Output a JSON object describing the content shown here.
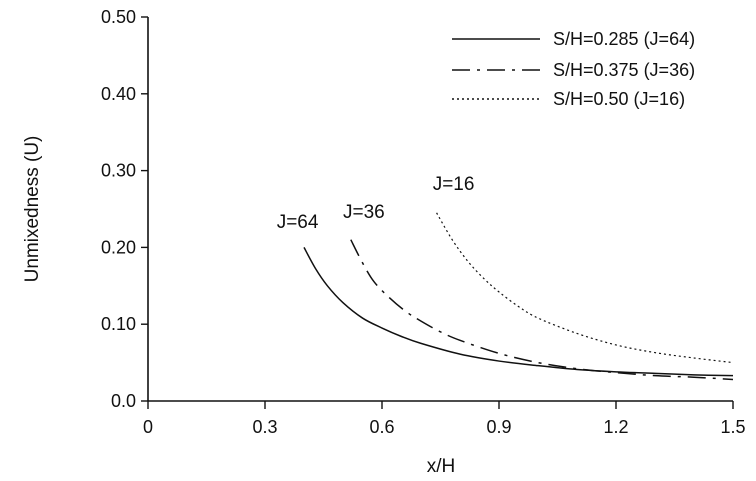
{
  "chart_data": {
    "type": "line",
    "title": "",
    "xlabel": "x/H",
    "ylabel": "Unmixedness (U)",
    "xlim": [
      0,
      1.5
    ],
    "ylim": [
      0,
      0.5
    ],
    "x_ticks": [
      0,
      0.3,
      0.6,
      0.9,
      1.2,
      1.5
    ],
    "x_tick_labels": [
      "0",
      "0.3",
      "0.6",
      "0.9",
      "1.2",
      "1.5"
    ],
    "y_ticks": [
      0,
      0.1,
      0.2,
      0.3,
      0.4,
      0.5
    ],
    "y_tick_labels": [
      "0.0",
      "0.10",
      "0.20",
      "0.30",
      "0.40",
      "0.50"
    ],
    "grid": false,
    "legend_position": "top-right",
    "series": [
      {
        "name": "S/H=0.285 (J=64)",
        "line_style": "solid",
        "x": [
          0.4,
          0.43,
          0.46,
          0.5,
          0.55,
          0.6,
          0.65,
          0.7,
          0.8,
          0.9,
          1.0,
          1.1,
          1.2,
          1.3,
          1.4,
          1.5
        ],
        "y": [
          0.2,
          0.172,
          0.15,
          0.128,
          0.108,
          0.095,
          0.084,
          0.075,
          0.061,
          0.052,
          0.046,
          0.041,
          0.038,
          0.036,
          0.034,
          0.033
        ]
      },
      {
        "name": "S/H=0.375 (J=36)",
        "line_style": "dash-dot",
        "x": [
          0.52,
          0.55,
          0.58,
          0.62,
          0.66,
          0.7,
          0.75,
          0.8,
          0.9,
          1.0,
          1.1,
          1.2,
          1.3,
          1.4,
          1.5
        ],
        "y": [
          0.21,
          0.18,
          0.155,
          0.134,
          0.117,
          0.104,
          0.09,
          0.079,
          0.062,
          0.05,
          0.042,
          0.037,
          0.033,
          0.031,
          0.028
        ]
      },
      {
        "name": "S/H=0.50 (J=16)",
        "line_style": "dotted",
        "x": [
          0.74,
          0.78,
          0.82,
          0.86,
          0.9,
          0.95,
          1.0,
          1.1,
          1.2,
          1.3,
          1.4,
          1.5
        ],
        "y": [
          0.245,
          0.21,
          0.182,
          0.16,
          0.142,
          0.123,
          0.108,
          0.088,
          0.073,
          0.063,
          0.056,
          0.05
        ]
      }
    ],
    "annotations": [
      {
        "text": "J=64",
        "x": 0.33,
        "y": 0.225
      },
      {
        "text": "J=36",
        "x": 0.5,
        "y": 0.238
      },
      {
        "text": "J=16",
        "x": 0.73,
        "y": 0.275
      }
    ]
  }
}
